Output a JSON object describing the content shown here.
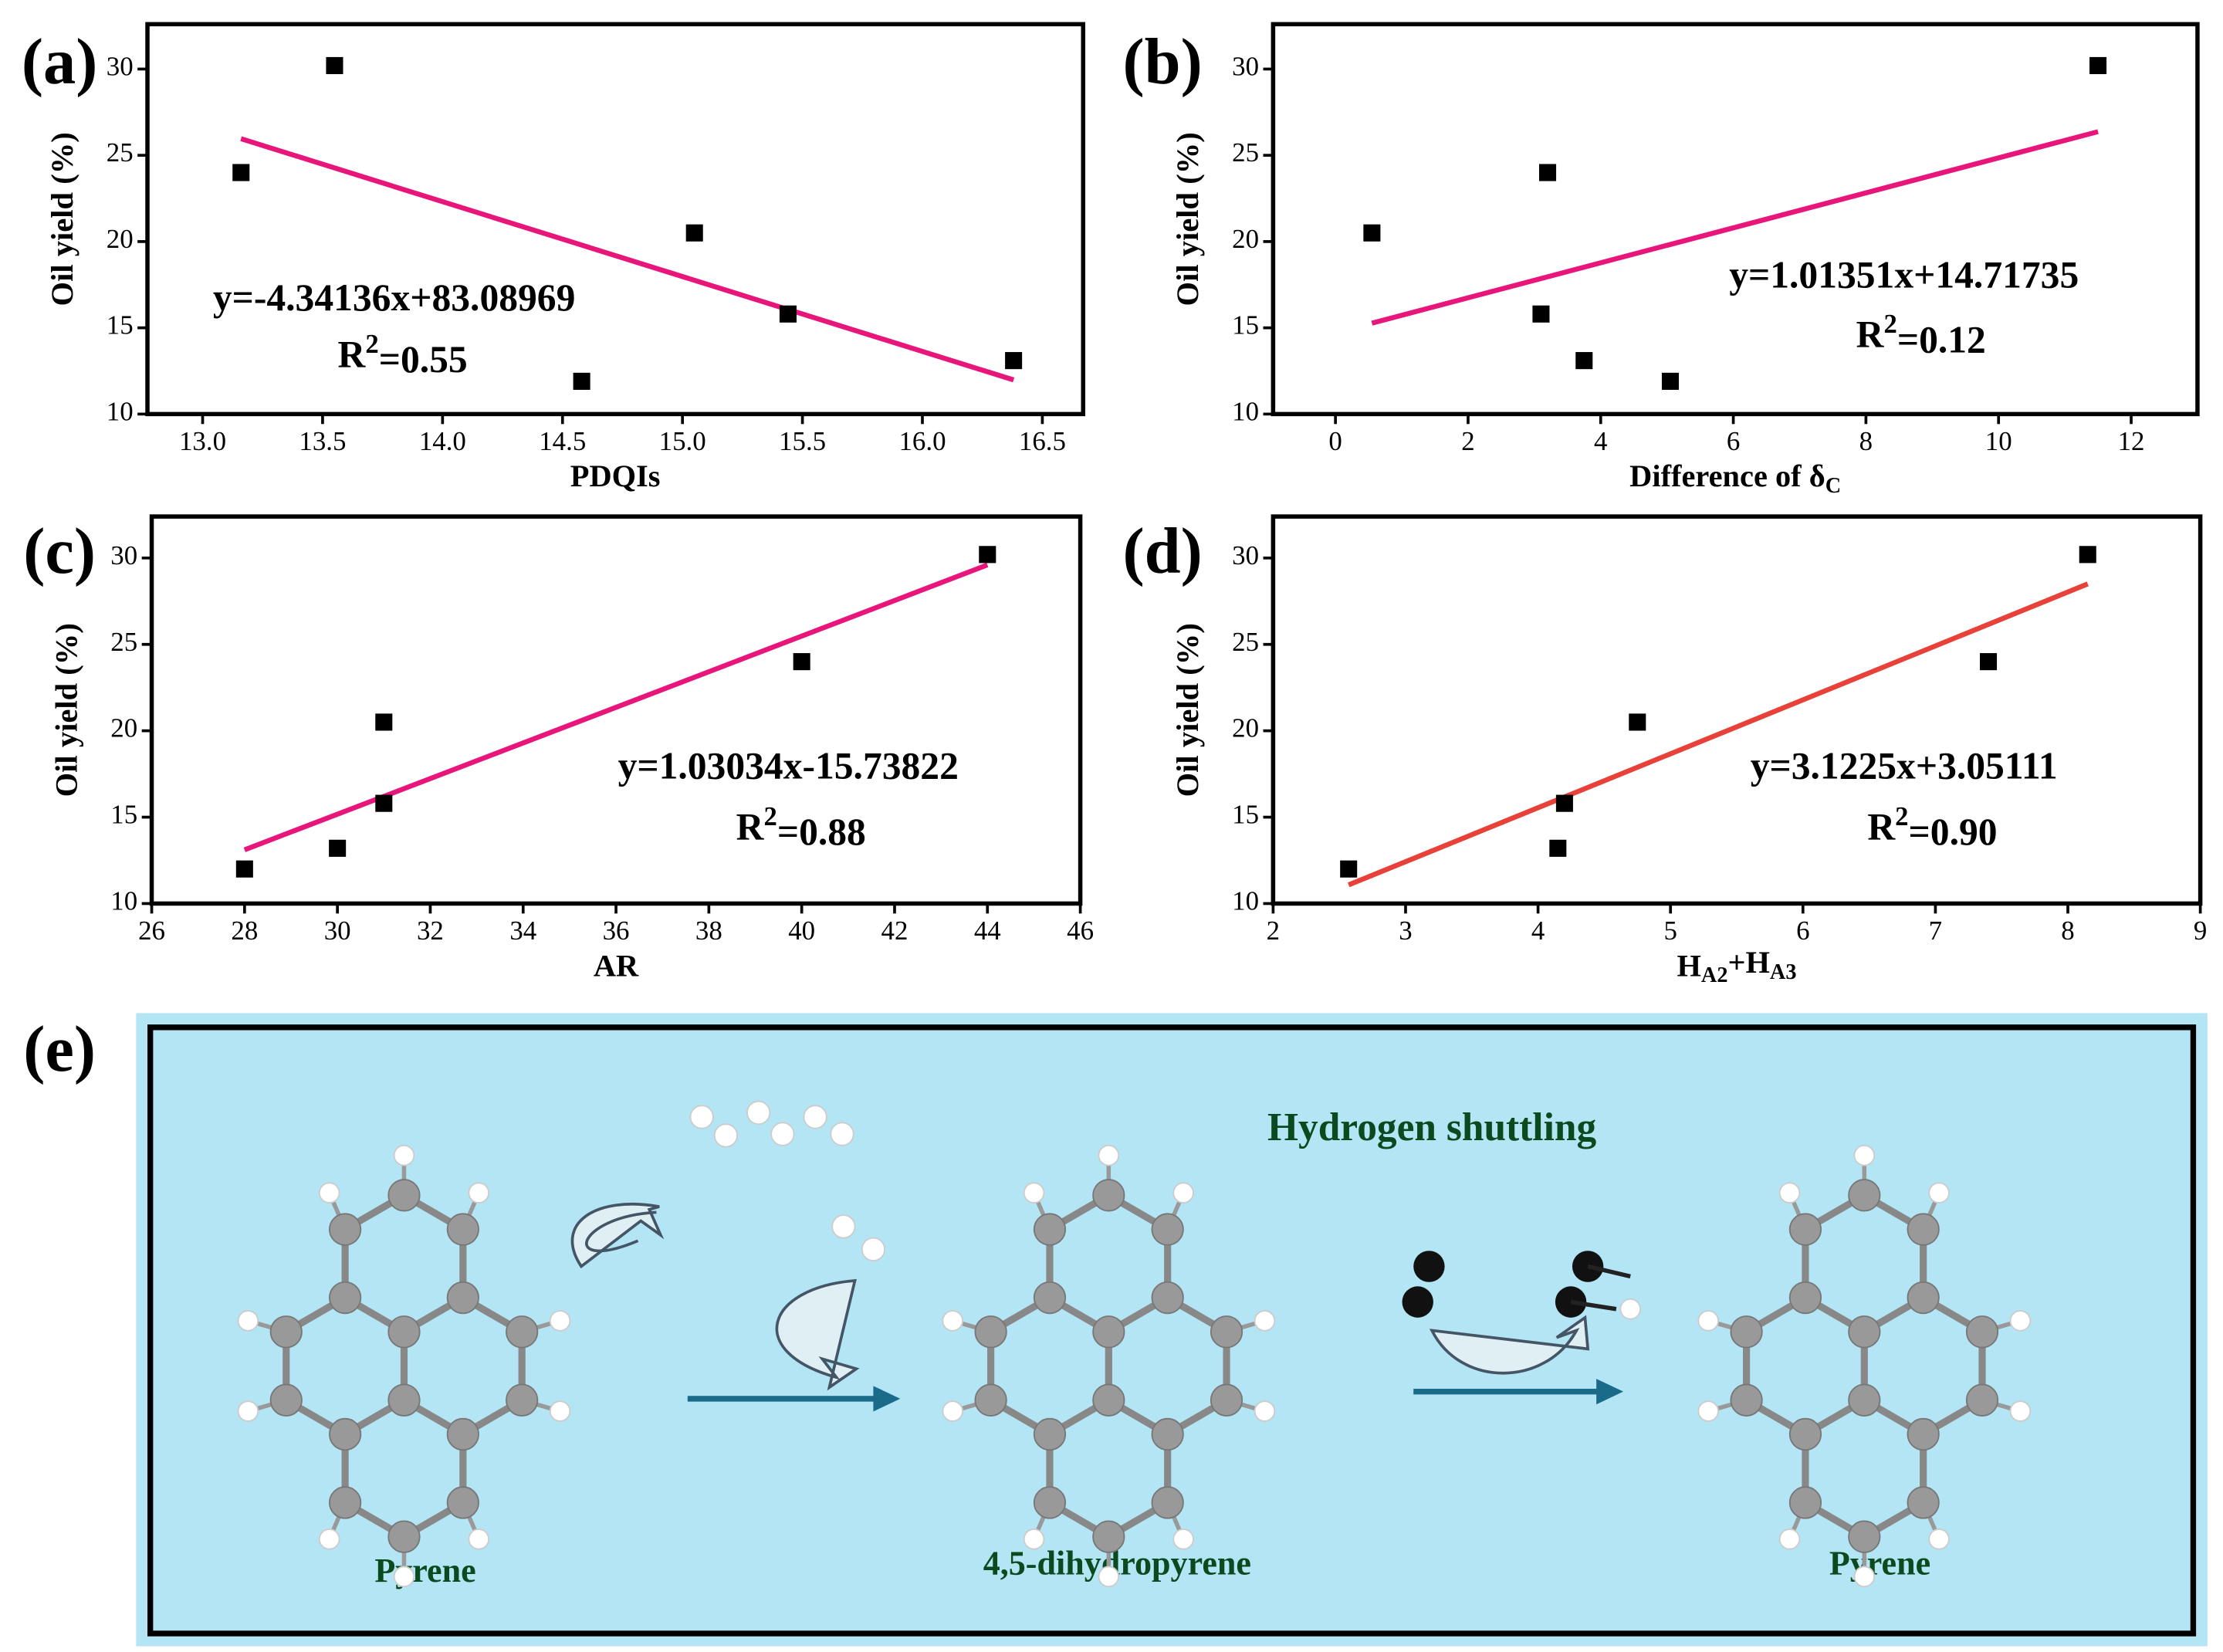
{
  "chart_data": [
    {
      "type": "scatter",
      "panel_label": "(a)",
      "xlabel": [
        "PDQIs"
      ],
      "ylabel": "Oil yield (%)",
      "color": "#000000",
      "x": [
        13.16,
        13.55,
        14.58,
        15.05,
        15.44,
        16.38
      ],
      "values": [
        24.0,
        30.2,
        11.9,
        20.5,
        15.8,
        13.1
      ],
      "fit": {
        "x": [
          13.16,
          16.38
        ],
        "values": [
          25.96,
          11.98
        ],
        "color": "#e8157b"
      },
      "equation": "y=-4.34136x+83.08969",
      "r2": [
        "R",
        "2",
        "=0.55"
      ],
      "xlim": [
        12.77,
        16.67
      ],
      "ylim": [
        10,
        32.6
      ],
      "xticks": [
        {
          "value": 13,
          "label": "13.0"
        },
        13.5,
        {
          "value": 14,
          "label": "14.0"
        },
        14.5,
        {
          "value": 15,
          "label": "15.0"
        },
        15.5,
        {
          "value": 16,
          "label": "16.0"
        },
        16.5
      ],
      "yticks": [
        10,
        15,
        20,
        25,
        30
      ]
    },
    {
      "type": "scatter",
      "panel_label": "(b)",
      "xlabel": [
        "Difference of δ",
        "C"
      ],
      "ylabel": "Oil yield (%)",
      "color": "#000000",
      "x": [
        0.55,
        3.1,
        3.2,
        3.75,
        5.05,
        11.5
      ],
      "values": [
        20.5,
        15.8,
        24.0,
        13.1,
        11.9,
        30.2
      ],
      "fit": {
        "x": [
          0.55,
          11.5
        ],
        "values": [
          15.27,
          26.37
        ],
        "color": "#e8157b"
      },
      "equation": "y=1.01351x+14.71735",
      "r2": [
        "R",
        "2",
        "=0.12"
      ],
      "xlim": [
        -0.94,
        13.0
      ],
      "ylim": [
        10,
        32.6
      ],
      "xticks": [
        0,
        2,
        4,
        6,
        8,
        10,
        12
      ],
      "yticks": [
        10,
        15,
        20,
        25,
        30
      ]
    },
    {
      "type": "scatter",
      "panel_label": "(c)",
      "xlabel": [
        "AR"
      ],
      "ylabel": "Oil yield (%)",
      "color": "#000000",
      "x": [
        28,
        30,
        31,
        31,
        40,
        44
      ],
      "values": [
        12.0,
        13.2,
        20.5,
        15.8,
        24.0,
        30.2
      ],
      "fit": {
        "x": [
          28,
          44
        ],
        "values": [
          13.11,
          29.6
        ],
        "color": "#e8157b"
      },
      "equation": "y=1.03034x-15.73822",
      "r2": [
        "R",
        "2",
        "=0.88"
      ],
      "xlim": [
        26,
        46
      ],
      "ylim": [
        10,
        32.4
      ],
      "xticks": [
        26,
        28,
        30,
        32,
        34,
        36,
        38,
        40,
        42,
        44,
        46
      ],
      "yticks": [
        10,
        15,
        20,
        25,
        30
      ]
    },
    {
      "type": "scatter",
      "panel_label": "(d)",
      "xlabel": [
        "H",
        "A2",
        "+H",
        "A3"
      ],
      "ylabel": "Oil yield (%)",
      "color": "#000000",
      "x": [
        2.57,
        4.15,
        4.2,
        4.75,
        7.4,
        8.15
      ],
      "values": [
        12.0,
        13.2,
        15.8,
        20.5,
        24.0,
        30.2
      ],
      "fit": {
        "x": [
          2.57,
          8.15
        ],
        "values": [
          11.08,
          28.5
        ],
        "color": "#e8413a"
      },
      "equation": "y=3.1225x+3.05111",
      "r2": [
        "R",
        "2",
        "=0.90"
      ],
      "xlim": [
        2,
        9
      ],
      "ylim": [
        10,
        32.4
      ],
      "xticks": [
        2,
        3,
        4,
        5,
        6,
        7,
        8,
        9
      ],
      "yticks": [
        10,
        15,
        20,
        25,
        30
      ]
    }
  ],
  "diagram": {
    "panel_label": "(e)",
    "title": "Hydrogen shuttling",
    "molecules": [
      "Pyrene",
      "4,5-dihydropyrene",
      "Pyrene"
    ]
  }
}
